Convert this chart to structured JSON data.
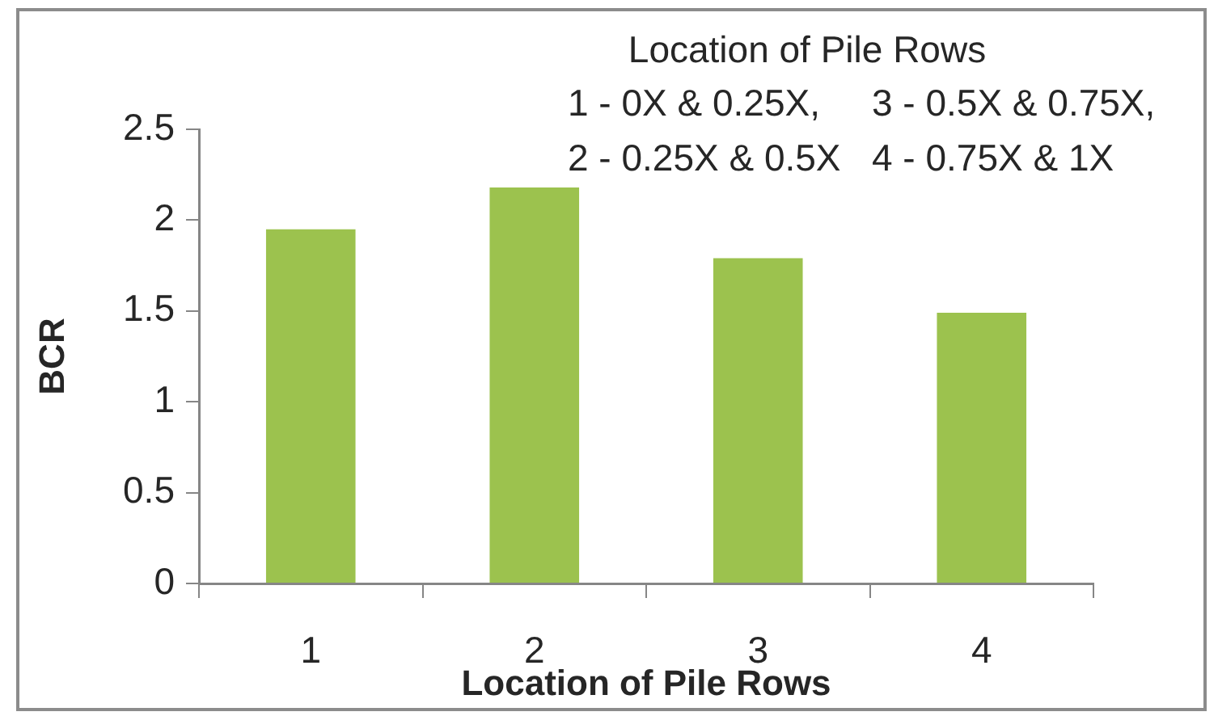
{
  "chart_data": {
    "type": "bar",
    "xlabel": "Location of Pile Rows",
    "ylabel": "BCR",
    "categories": [
      "1",
      "2",
      "3",
      "4"
    ],
    "values": [
      1.95,
      2.18,
      1.79,
      1.49
    ],
    "color": "#9cc24e",
    "ylim": [
      0,
      2.5
    ],
    "yticks": [
      0,
      0.5,
      1,
      1.5,
      2,
      2.5
    ],
    "annotations": [
      "Location of Pile Rows",
      "1 - 0X & 0.25X,",
      "3 - 0.5X & 0.75X,",
      "2 - 0.25X & 0.5X",
      "4 - 0.75X & 1X"
    ]
  }
}
